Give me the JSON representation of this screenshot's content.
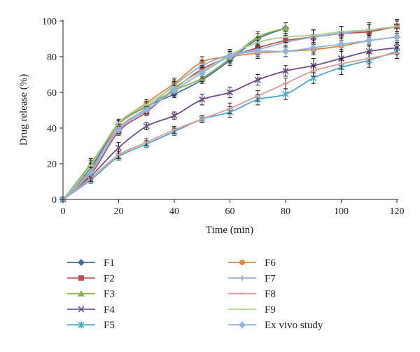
{
  "chart_data": {
    "type": "line",
    "xlabel": "Time (min)",
    "ylabel": "Drug release (%)",
    "xlim": [
      0,
      120
    ],
    "ylim": [
      0,
      100
    ],
    "x_ticks": [
      "0",
      "20",
      "40",
      "60",
      "80",
      "100",
      "120"
    ],
    "y_ticks": [
      "0",
      "20",
      "40",
      "60",
      "80",
      "100"
    ],
    "grid": false,
    "legend_position": "bottom",
    "series": [
      {
        "name": "F1",
        "color": "#3B6DA8",
        "marker": "diamond",
        "x": [
          0,
          10,
          20,
          30,
          40,
          50,
          60,
          70,
          80
        ],
        "y": [
          0,
          18,
          42,
          52,
          59,
          67,
          78,
          90,
          96
        ],
        "err": [
          1,
          3,
          2,
          2,
          2,
          2,
          3,
          3,
          3
        ]
      },
      {
        "name": "F2",
        "color": "#C0504D",
        "marker": "square",
        "x": [
          0,
          10,
          20,
          30,
          40,
          50,
          60,
          70,
          80,
          90,
          100,
          110,
          120
        ],
        "y": [
          0,
          14,
          38,
          49,
          62,
          73,
          80,
          85,
          89,
          91,
          93,
          94,
          97
        ],
        "err": [
          1,
          3,
          2,
          2,
          2,
          2,
          3,
          3,
          3,
          4,
          4,
          4,
          4
        ]
      },
      {
        "name": "F3",
        "color": "#8CB048",
        "marker": "triangle",
        "x": [
          0,
          10,
          20,
          30,
          40,
          50,
          60,
          70,
          80
        ],
        "y": [
          0,
          20,
          42,
          52,
          61,
          68,
          79,
          91,
          96
        ],
        "err": [
          1,
          3,
          2,
          2,
          2,
          2,
          3,
          3,
          3
        ]
      },
      {
        "name": "F4",
        "color": "#6E4C8E",
        "marker": "x",
        "x": [
          0,
          10,
          20,
          30,
          40,
          50,
          60,
          70,
          80,
          90,
          100,
          110,
          120
        ],
        "y": [
          0,
          13,
          29,
          41,
          47,
          56,
          60,
          67,
          72,
          75,
          79,
          83,
          85
        ],
        "err": [
          1,
          2,
          3,
          2,
          2,
          3,
          3,
          3,
          3,
          4,
          4,
          4,
          4
        ]
      },
      {
        "name": "F5",
        "color": "#4BACC6",
        "marker": "star",
        "x": [
          0,
          10,
          20,
          30,
          40,
          50,
          60,
          70,
          80,
          90,
          100,
          110,
          120
        ],
        "y": [
          0,
          11,
          24,
          31,
          38,
          45,
          49,
          56,
          59,
          68,
          74,
          78,
          83
        ],
        "err": [
          1,
          2,
          2,
          2,
          2,
          2,
          3,
          3,
          3,
          3,
          4,
          4,
          4
        ]
      },
      {
        "name": "F6",
        "color": "#E0893B",
        "marker": "circle",
        "x": [
          0,
          10,
          20,
          30,
          40,
          50,
          60,
          70,
          80,
          90,
          100,
          110,
          120
        ],
        "y": [
          0,
          16,
          42,
          54,
          65,
          77,
          80,
          82,
          83,
          84,
          86,
          89,
          91
        ],
        "err": [
          1,
          3,
          2,
          2,
          3,
          3,
          3,
          3,
          3,
          3,
          3,
          3,
          3
        ]
      },
      {
        "name": "F7",
        "color": "#8FA8D8",
        "marker": "plus",
        "x": [
          0,
          10,
          20,
          30,
          40,
          50,
          60,
          70,
          80,
          90,
          100,
          110,
          120
        ],
        "y": [
          0,
          17,
          40,
          51,
          64,
          75,
          81,
          84,
          88,
          91,
          93,
          95,
          97
        ],
        "err": [
          1,
          3,
          2,
          2,
          3,
          3,
          3,
          3,
          3,
          4,
          4,
          4,
          4
        ]
      },
      {
        "name": "F8",
        "color": "#E09A96",
        "marker": "dash",
        "x": [
          0,
          10,
          20,
          30,
          40,
          50,
          60,
          70,
          80,
          90,
          100,
          110,
          120
        ],
        "y": [
          0,
          12,
          25,
          32,
          39,
          45,
          51,
          58,
          65,
          72,
          76,
          79,
          82
        ],
        "err": [
          1,
          2,
          2,
          2,
          2,
          2,
          3,
          3,
          3,
          3,
          3,
          3,
          3
        ]
      },
      {
        "name": "F9",
        "color": "#A9D08E",
        "marker": "dash",
        "x": [
          0,
          10,
          20,
          30,
          40,
          50,
          60,
          70,
          80,
          90,
          100,
          110,
          120
        ],
        "y": [
          0,
          19,
          43,
          53,
          63,
          72,
          81,
          88,
          91,
          92,
          94,
          95,
          97
        ],
        "err": [
          1,
          3,
          2,
          2,
          3,
          3,
          3,
          3,
          3,
          3,
          3,
          3,
          3
        ]
      },
      {
        "name": "Ex vivo study",
        "color": "#8DB4E2",
        "marker": "diamond-star",
        "x": [
          0,
          10,
          20,
          30,
          40,
          50,
          60,
          70,
          80,
          90,
          100,
          110,
          120
        ],
        "y": [
          0,
          15,
          39,
          50,
          61,
          71,
          80,
          83,
          83,
          85,
          87,
          89,
          91
        ],
        "err": [
          1,
          3,
          2,
          2,
          3,
          3,
          3,
          3,
          3,
          3,
          3,
          3,
          3
        ]
      }
    ]
  }
}
